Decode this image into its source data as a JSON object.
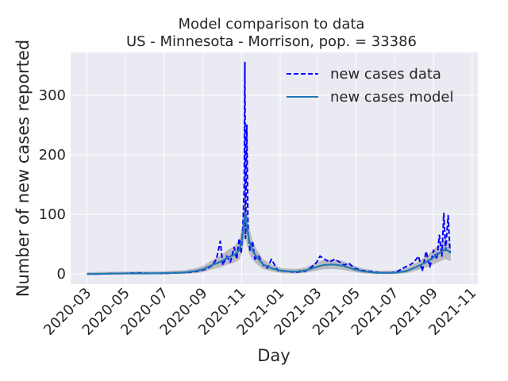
{
  "chart_data": {
    "type": "line",
    "title": "Model comparison to data",
    "subtitle": "US - Minnesota - Morrison, pop. = 33386",
    "xlabel": "Day",
    "ylabel": "Number of new cases reported",
    "x_axis_type": "date",
    "xlim": [
      "2020-02-04",
      "2021-11-10"
    ],
    "ylim": [
      -17,
      372
    ],
    "x_ticks": [
      "2020-03",
      "2020-05",
      "2020-07",
      "2020-09",
      "2020-11",
      "2021-01",
      "2021-03",
      "2021-05",
      "2021-07",
      "2021-09",
      "2021-11"
    ],
    "y_ticks": [
      0,
      100,
      200,
      300
    ],
    "grid": true,
    "background": "#eaeaf2",
    "legend_position": "top-right",
    "series": [
      {
        "name": "new cases data",
        "style": "dashed",
        "color": "#0000ff",
        "points": [
          [
            "2020-03-01",
            0
          ],
          [
            "2020-03-20",
            0
          ],
          [
            "2020-04-10",
            1
          ],
          [
            "2020-05-01",
            1
          ],
          [
            "2020-05-20",
            2
          ],
          [
            "2020-06-10",
            1
          ],
          [
            "2020-07-01",
            1
          ],
          [
            "2020-07-25",
            2
          ],
          [
            "2020-08-10",
            3
          ],
          [
            "2020-08-25",
            5
          ],
          [
            "2020-09-05",
            8
          ],
          [
            "2020-09-15",
            14
          ],
          [
            "2020-09-22",
            25
          ],
          [
            "2020-09-28",
            55
          ],
          [
            "2020-10-02",
            15
          ],
          [
            "2020-10-08",
            30
          ],
          [
            "2020-10-14",
            20
          ],
          [
            "2020-10-20",
            45
          ],
          [
            "2020-10-24",
            25
          ],
          [
            "2020-10-28",
            60
          ],
          [
            "2020-10-31",
            35
          ],
          [
            "2020-11-03",
            80
          ],
          [
            "2020-11-05",
            150
          ],
          [
            "2020-11-06",
            355
          ],
          [
            "2020-11-07",
            60
          ],
          [
            "2020-11-09",
            250
          ],
          [
            "2020-11-11",
            70
          ],
          [
            "2020-11-14",
            40
          ],
          [
            "2020-11-18",
            55
          ],
          [
            "2020-11-22",
            25
          ],
          [
            "2020-11-28",
            30
          ],
          [
            "2020-12-05",
            15
          ],
          [
            "2020-12-12",
            10
          ],
          [
            "2020-12-18",
            25
          ],
          [
            "2020-12-28",
            6
          ],
          [
            "2021-01-10",
            5
          ],
          [
            "2021-01-25",
            3
          ],
          [
            "2021-02-10",
            5
          ],
          [
            "2021-02-20",
            12
          ],
          [
            "2021-02-28",
            20
          ],
          [
            "2021-03-05",
            30
          ],
          [
            "2021-03-12",
            25
          ],
          [
            "2021-03-20",
            20
          ],
          [
            "2021-03-28",
            25
          ],
          [
            "2021-04-05",
            20
          ],
          [
            "2021-04-12",
            15
          ],
          [
            "2021-04-20",
            18
          ],
          [
            "2021-04-28",
            10
          ],
          [
            "2021-05-10",
            6
          ],
          [
            "2021-05-25",
            4
          ],
          [
            "2021-06-10",
            2
          ],
          [
            "2021-06-25",
            2
          ],
          [
            "2021-07-05",
            4
          ],
          [
            "2021-07-15",
            10
          ],
          [
            "2021-07-25",
            15
          ],
          [
            "2021-08-01",
            20
          ],
          [
            "2021-08-08",
            30
          ],
          [
            "2021-08-14",
            5
          ],
          [
            "2021-08-20",
            38
          ],
          [
            "2021-08-26",
            12
          ],
          [
            "2021-09-01",
            40
          ],
          [
            "2021-09-06",
            25
          ],
          [
            "2021-09-10",
            65
          ],
          [
            "2021-09-14",
            30
          ],
          [
            "2021-09-17",
            102
          ],
          [
            "2021-09-20",
            40
          ],
          [
            "2021-09-24",
            98
          ],
          [
            "2021-09-27",
            35
          ]
        ]
      },
      {
        "name": "new cases model",
        "style": "solid",
        "color": "#1f77b4",
        "band_color": "#808080",
        "points": [
          [
            "2020-03-01",
            0
          ],
          [
            "2020-04-01",
            0.5
          ],
          [
            "2020-05-01",
            1
          ],
          [
            "2020-06-01",
            1
          ],
          [
            "2020-07-01",
            1.5
          ],
          [
            "2020-08-01",
            2.5
          ],
          [
            "2020-08-20",
            5
          ],
          [
            "2020-09-01",
            8
          ],
          [
            "2020-09-15",
            15
          ],
          [
            "2020-10-01",
            22
          ],
          [
            "2020-10-10",
            28
          ],
          [
            "2020-10-20",
            32
          ],
          [
            "2020-10-28",
            40
          ],
          [
            "2020-11-02",
            60
          ],
          [
            "2020-11-06",
            100
          ],
          [
            "2020-11-09",
            80
          ],
          [
            "2020-11-13",
            55
          ],
          [
            "2020-11-18",
            40
          ],
          [
            "2020-11-25",
            28
          ],
          [
            "2020-12-05",
            16
          ],
          [
            "2020-12-20",
            9
          ],
          [
            "2021-01-05",
            5
          ],
          [
            "2021-01-25",
            4
          ],
          [
            "2021-02-10",
            6
          ],
          [
            "2021-02-25",
            11
          ],
          [
            "2021-03-10",
            15
          ],
          [
            "2021-03-25",
            16
          ],
          [
            "2021-04-10",
            14
          ],
          [
            "2021-04-25",
            9
          ],
          [
            "2021-05-10",
            5
          ],
          [
            "2021-06-01",
            2
          ],
          [
            "2021-07-01",
            2
          ],
          [
            "2021-07-20",
            5
          ],
          [
            "2021-08-05",
            12
          ],
          [
            "2021-08-20",
            20
          ],
          [
            "2021-09-01",
            28
          ],
          [
            "2021-09-10",
            35
          ],
          [
            "2021-09-20",
            42
          ],
          [
            "2021-09-25",
            38
          ],
          [
            "2021-09-28",
            36
          ]
        ]
      }
    ]
  }
}
